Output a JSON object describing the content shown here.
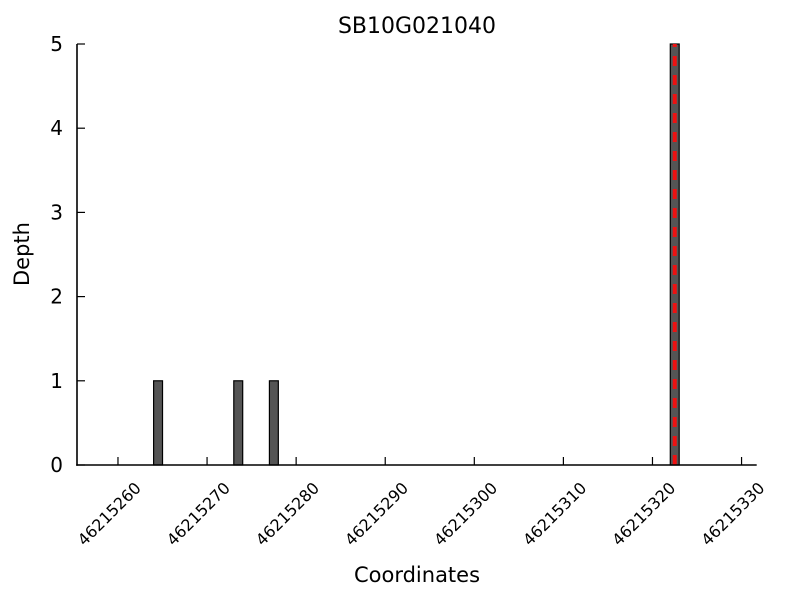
{
  "chart_data": {
    "type": "bar",
    "title": "SB10G021040",
    "xlabel": "Coordinates",
    "ylabel": "Depth",
    "bars": [
      {
        "x": 46215264,
        "height": 1
      },
      {
        "x": 46215273,
        "height": 1
      },
      {
        "x": 46215277,
        "height": 1
      },
      {
        "x": 46215322,
        "height": 5
      }
    ],
    "bar_width": 1,
    "bar_align": "edge",
    "x_ticks": [
      46215260,
      46215270,
      46215280,
      46215290,
      46215300,
      46215310,
      46215320,
      46215330
    ],
    "y_ticks": [
      0,
      1,
      2,
      3,
      4,
      5
    ],
    "xlim": [
      46215255.4,
      46215331.7
    ],
    "ylim": [
      0,
      5
    ],
    "x_tick_rotation_deg": 45,
    "grid": false,
    "legend": null,
    "vline": {
      "x": 46215322.5,
      "style": "dashed",
      "color": "#ee1111"
    },
    "colors": {
      "bar_fill": "#555555",
      "bar_edge": "#000000",
      "axis": "#000000",
      "background": "#ffffff",
      "text": "#000000"
    }
  }
}
